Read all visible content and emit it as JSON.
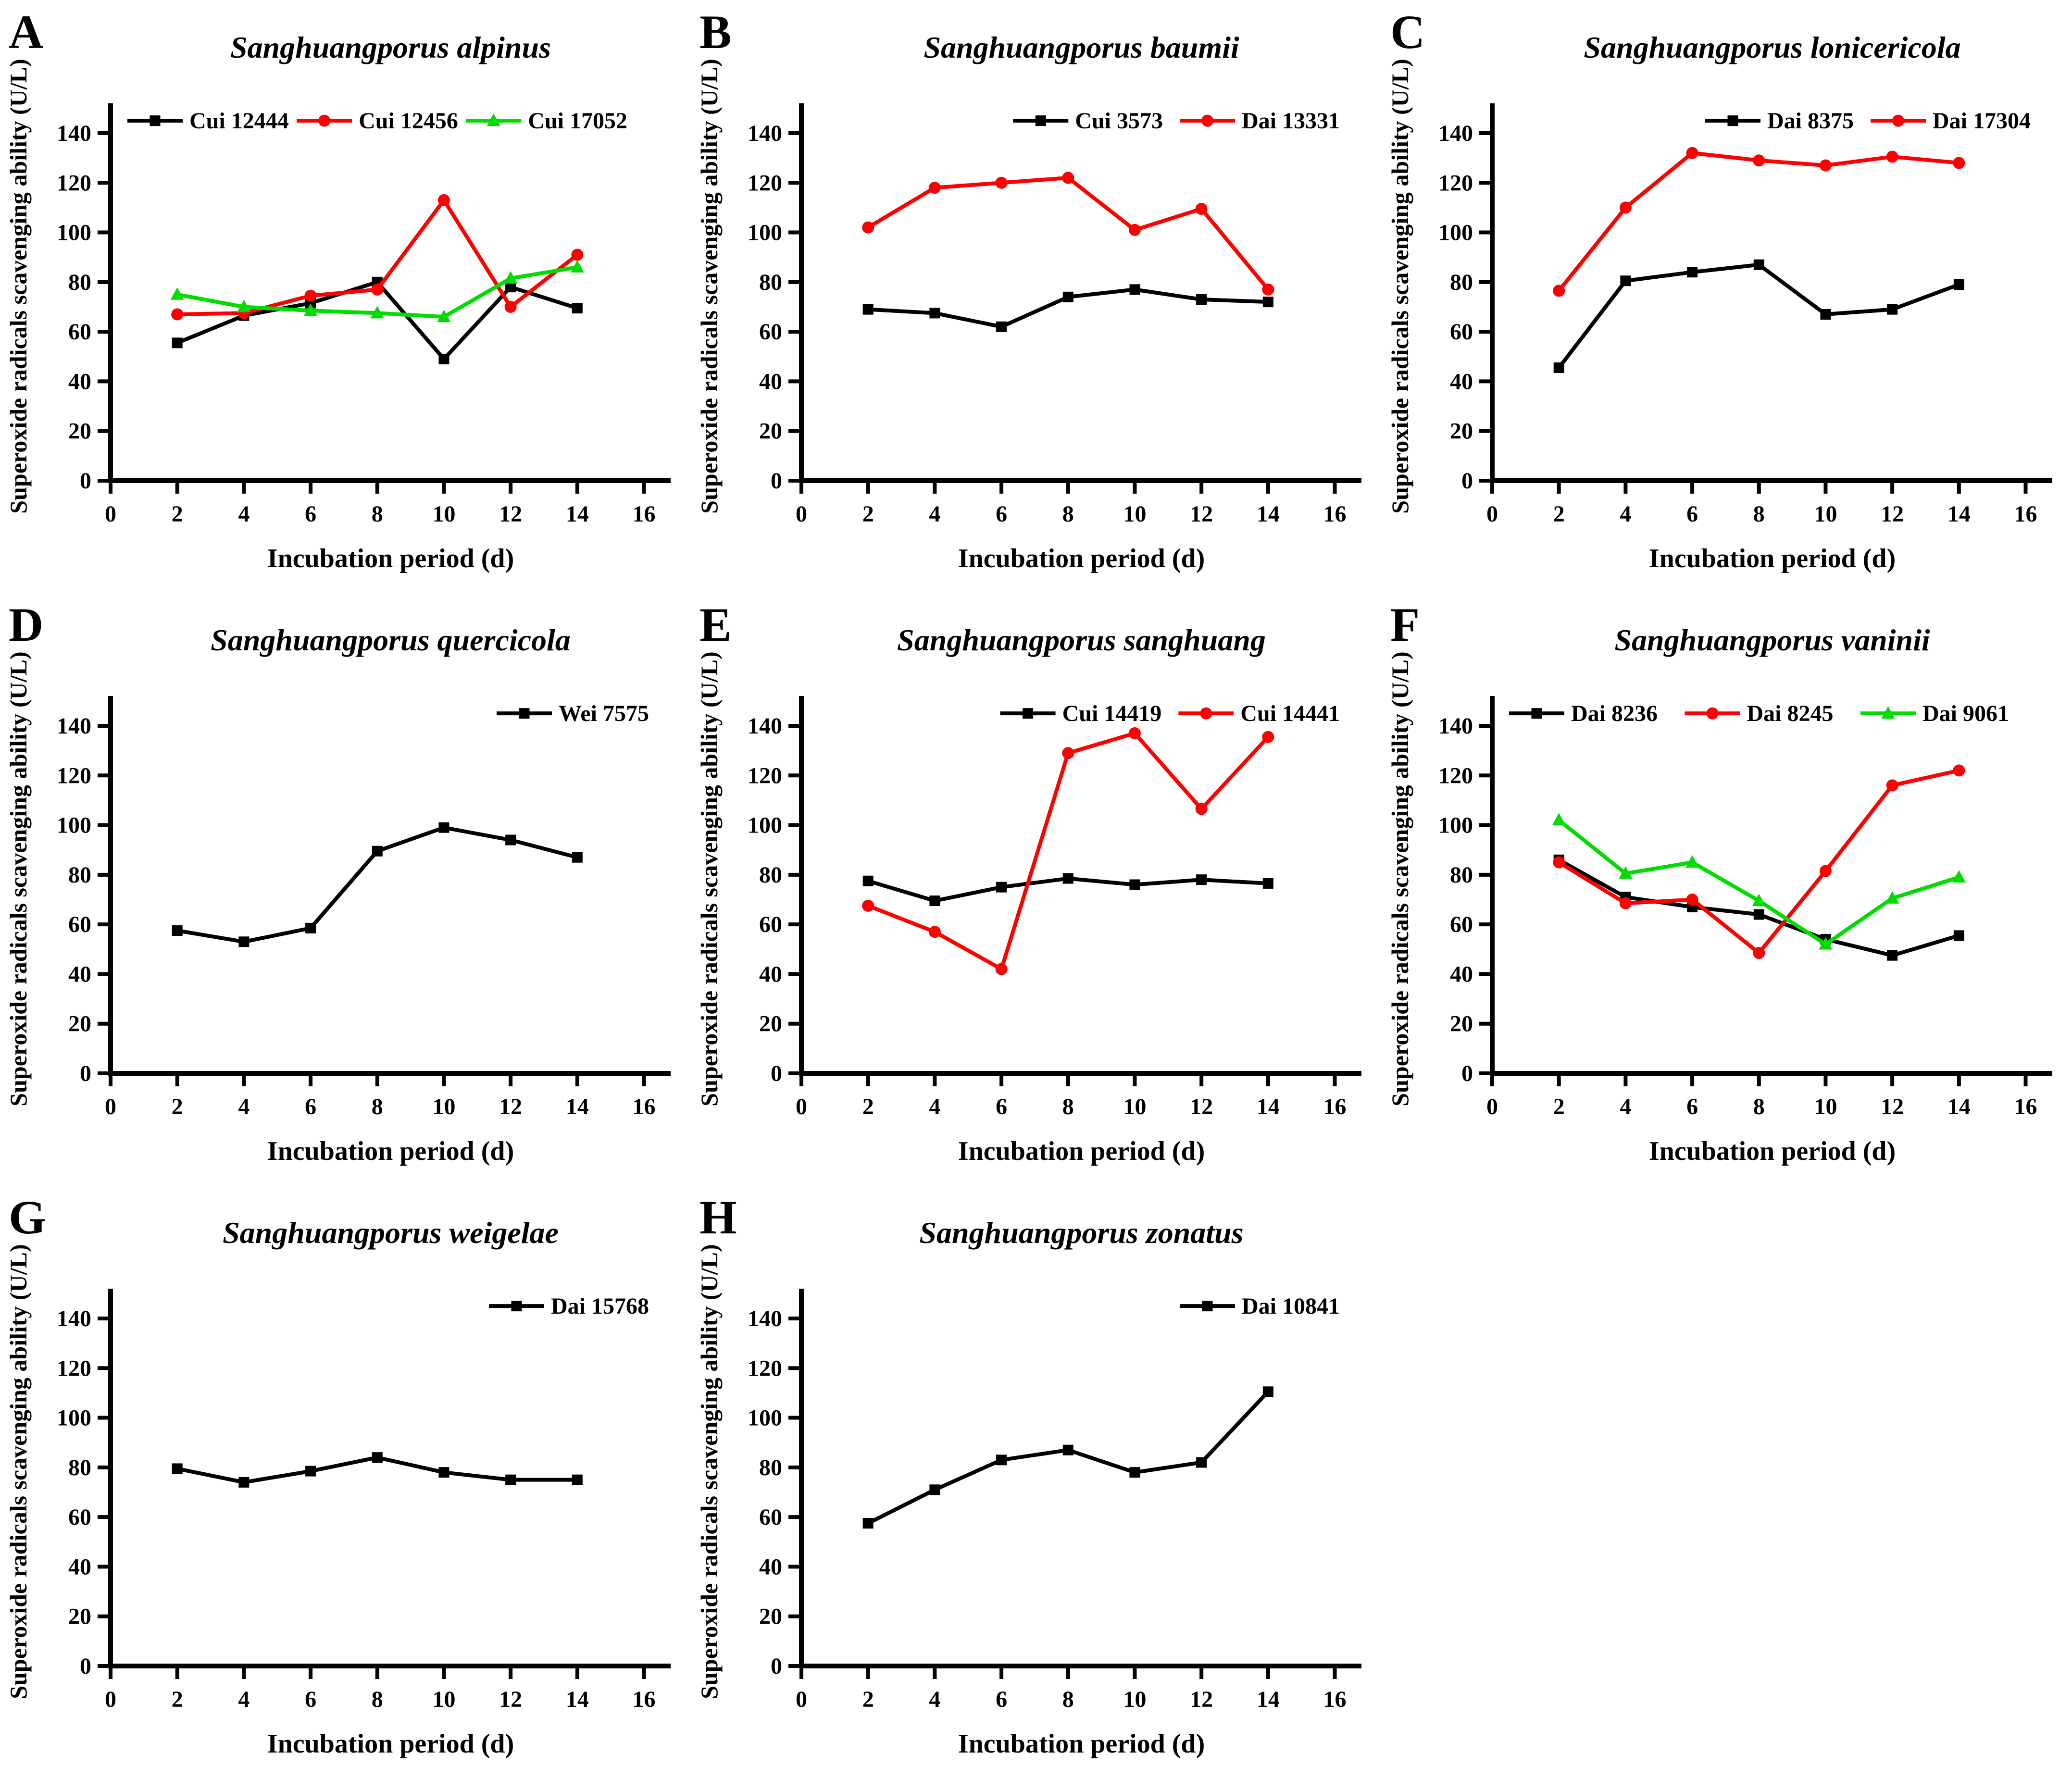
{
  "figure": {
    "xlabel": "Incubation period (d)",
    "ylabel": "Superoxide radicals scavenging ability (U/L)",
    "x_ticks": [
      0,
      2,
      4,
      6,
      8,
      10,
      12,
      14,
      16
    ],
    "y_ticks": [
      0,
      20,
      40,
      60,
      80,
      100,
      120,
      140
    ],
    "xlim": [
      0,
      16.8
    ],
    "ylim": [
      0,
      152
    ],
    "colors": {
      "series_black": "#000000",
      "series_red": "#FF0000",
      "series_green": "#00DC00",
      "axis": "#000000",
      "background": "#FFFFFF"
    }
  },
  "chart_data": [
    {
      "type": "line",
      "panel": "A",
      "title": "Sanghuangporus alpinus",
      "xlabel": "Incubation period (d)",
      "ylabel": "Superoxide radicals scavenging ability (U/L)",
      "x": [
        2,
        4,
        6,
        8,
        10,
        12,
        14
      ],
      "legend_align": "spread",
      "legend_position": "inside-top",
      "series": [
        {
          "name": "Cui 12444",
          "color": "#000000",
          "marker": "square",
          "values": [
            55.5,
            66.5,
            71.5,
            80,
            49,
            78,
            69.5
          ]
        },
        {
          "name": "Cui 12456",
          "color": "#FF0000",
          "marker": "circle",
          "values": [
            67,
            67.5,
            74.5,
            77,
            113,
            70,
            91
          ]
        },
        {
          "name": "Cui 17052",
          "color": "#00DC00",
          "marker": "triangle",
          "values": [
            75,
            70,
            68.5,
            67.5,
            66,
            81.5,
            86
          ]
        }
      ]
    },
    {
      "type": "line",
      "panel": "B",
      "title": "Sanghuangporus baumii",
      "xlabel": "Incubation period (d)",
      "ylabel": "Superoxide radicals scavenging ability (U/L)",
      "x": [
        2,
        4,
        6,
        8,
        10,
        12,
        14
      ],
      "legend_align": "right",
      "legend_position": "inside-top",
      "series": [
        {
          "name": "Cui 3573",
          "color": "#000000",
          "marker": "square",
          "values": [
            69,
            67.5,
            62,
            74,
            77,
            73,
            72
          ]
        },
        {
          "name": "Dai 13331",
          "color": "#FF0000",
          "marker": "circle",
          "values": [
            102,
            118,
            120,
            122,
            101,
            109.5,
            77
          ]
        }
      ]
    },
    {
      "type": "line",
      "panel": "C",
      "title": "Sanghuangporus lonicericola",
      "xlabel": "Incubation period (d)",
      "ylabel": "Superoxide radicals scavenging ability (U/L)",
      "x": [
        2,
        4,
        6,
        8,
        10,
        12,
        14
      ],
      "legend_align": "right",
      "legend_position": "inside-top",
      "series": [
        {
          "name": "Dai 8375",
          "color": "#000000",
          "marker": "square",
          "values": [
            45.5,
            80.5,
            84,
            87,
            67,
            69,
            79
          ]
        },
        {
          "name": "Dai 17304",
          "color": "#FF0000",
          "marker": "circle",
          "values": [
            76.5,
            110,
            132,
            129,
            127,
            130.5,
            128
          ]
        }
      ]
    },
    {
      "type": "line",
      "panel": "D",
      "title": "Sanghuangporus quercicola",
      "xlabel": "Incubation period (d)",
      "ylabel": "Superoxide radicals scavenging ability (U/L)",
      "x": [
        2,
        4,
        6,
        8,
        10,
        12,
        14
      ],
      "legend_align": "right",
      "legend_position": "inside-top",
      "series": [
        {
          "name": "Wei 7575",
          "color": "#000000",
          "marker": "square",
          "values": [
            57.5,
            53,
            58.5,
            89.5,
            99,
            94,
            87
          ]
        }
      ]
    },
    {
      "type": "line",
      "panel": "E",
      "title": "Sanghuangporus sanghuang",
      "xlabel": "Incubation period (d)",
      "ylabel": "Superoxide radicals scavenging ability (U/L)",
      "x": [
        2,
        4,
        6,
        8,
        10,
        12,
        14
      ],
      "legend_align": "right",
      "legend_position": "inside-top",
      "series": [
        {
          "name": "Cui 14419",
          "color": "#000000",
          "marker": "square",
          "values": [
            77.5,
            69.5,
            75,
            78.5,
            76,
            78,
            76.5
          ]
        },
        {
          "name": "Cui 14441",
          "color": "#FF0000",
          "marker": "circle",
          "values": [
            67.5,
            57,
            42,
            129,
            137,
            106.5,
            135.5
          ]
        }
      ]
    },
    {
      "type": "line",
      "panel": "F",
      "title": "Sanghuangporus vaninii",
      "xlabel": "Incubation period (d)",
      "ylabel": "Superoxide radicals scavenging ability (U/L)",
      "x": [
        2,
        4,
        6,
        8,
        10,
        12,
        14
      ],
      "legend_align": "spread",
      "legend_position": "inside-top",
      "series": [
        {
          "name": "Dai 8236",
          "color": "#000000",
          "marker": "square",
          "values": [
            86,
            71,
            67,
            64,
            54,
            47.5,
            55.5
          ]
        },
        {
          "name": "Dai 8245",
          "color": "#FF0000",
          "marker": "circle",
          "values": [
            85,
            68.5,
            70,
            48.5,
            81.5,
            116,
            122
          ]
        },
        {
          "name": "Dai 9061",
          "color": "#00DC00",
          "marker": "triangle",
          "values": [
            102,
            80.5,
            85,
            69.5,
            52,
            70.5,
            79
          ]
        }
      ]
    },
    {
      "type": "line",
      "panel": "G",
      "title": "Sanghuangporus weigelae",
      "xlabel": "Incubation period (d)",
      "ylabel": "Superoxide radicals scavenging ability (U/L)",
      "x": [
        2,
        4,
        6,
        8,
        10,
        12,
        14
      ],
      "legend_align": "right",
      "legend_position": "inside-top",
      "series": [
        {
          "name": "Dai 15768",
          "color": "#000000",
          "marker": "square",
          "values": [
            79.5,
            74,
            78.5,
            84,
            78,
            75,
            75
          ]
        }
      ]
    },
    {
      "type": "line",
      "panel": "H",
      "title": "Sanghuangporus zonatus",
      "xlabel": "Incubation period (d)",
      "ylabel": "Superoxide radicals scavenging ability (U/L)",
      "x": [
        2,
        4,
        6,
        8,
        10,
        12,
        14
      ],
      "legend_align": "right",
      "legend_position": "inside-top",
      "series": [
        {
          "name": "Dai 10841",
          "color": "#000000",
          "marker": "square",
          "values": [
            57.5,
            71,
            83,
            87,
            78,
            82,
            110.5
          ]
        }
      ]
    }
  ]
}
